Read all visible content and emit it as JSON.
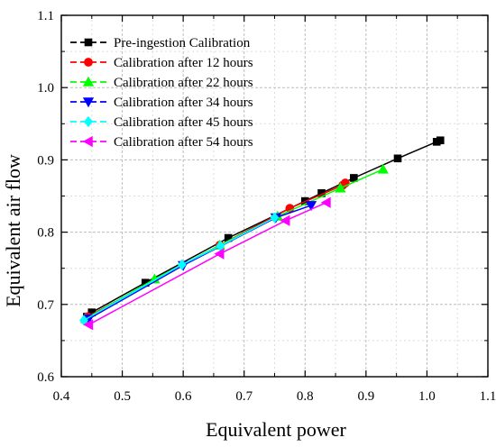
{
  "chart_data": {
    "type": "line",
    "title": "",
    "xlabel": "Equivalent power",
    "ylabel": "Equivalent air flow",
    "xlim": [
      0.4,
      1.1
    ],
    "ylim": [
      0.6,
      1.1
    ],
    "xticks": [
      0.4,
      0.5,
      0.6,
      0.7,
      0.8,
      0.9,
      1.0,
      1.1
    ],
    "yticks": [
      0.6,
      0.7,
      0.8,
      0.9,
      1.0,
      1.1
    ],
    "xtick_labels": [
      "0.4",
      "0.5",
      "0.6",
      "0.7",
      "0.8",
      "0.9",
      "1.0",
      "1.1"
    ],
    "ytick_labels": [
      "0.6",
      "0.7",
      "0.8",
      "0.9",
      "1.0",
      "1.1"
    ],
    "grid": true,
    "legend_position": "top-left",
    "series": [
      {
        "name": "Pre-ingestion Calibration",
        "color": "#000000",
        "marker": "square",
        "x": [
          0.442,
          0.45,
          0.538,
          0.674,
          0.8,
          0.827,
          0.88,
          0.952,
          1.016,
          1.022
        ],
        "y": [
          0.683,
          0.689,
          0.73,
          0.792,
          0.843,
          0.854,
          0.875,
          0.902,
          0.925,
          0.927
        ]
      },
      {
        "name": "Calibration after 12 hours",
        "color": "#ff0000",
        "marker": "circle",
        "x": [
          0.443,
          0.66,
          0.775,
          0.862,
          0.866
        ],
        "y": [
          0.683,
          0.782,
          0.833,
          0.865,
          0.868
        ]
      },
      {
        "name": "Calibration after 22 hours",
        "color": "#00ff00",
        "marker": "triangle-up",
        "x": [
          0.44,
          0.553,
          0.66,
          0.755,
          0.858,
          0.928
        ],
        "y": [
          0.68,
          0.735,
          0.782,
          0.822,
          0.861,
          0.887
        ]
      },
      {
        "name": "Calibration after 34 hours",
        "color": "#0000ff",
        "marker": "triangle-down",
        "x": [
          0.445,
          0.6,
          0.752,
          0.81
        ],
        "y": [
          0.68,
          0.754,
          0.82,
          0.837
        ]
      },
      {
        "name": "Calibration after 45 hours",
        "color": "#00ffff",
        "marker": "diamond",
        "x": [
          0.437,
          0.598,
          0.661,
          0.75
        ],
        "y": [
          0.678,
          0.755,
          0.781,
          0.82
        ]
      },
      {
        "name": "Calibration after 54 hours",
        "color": "#ff00ff",
        "marker": "triangle-left",
        "x": [
          0.445,
          0.66,
          0.768,
          0.835
        ],
        "y": [
          0.672,
          0.77,
          0.816,
          0.841
        ]
      }
    ]
  }
}
